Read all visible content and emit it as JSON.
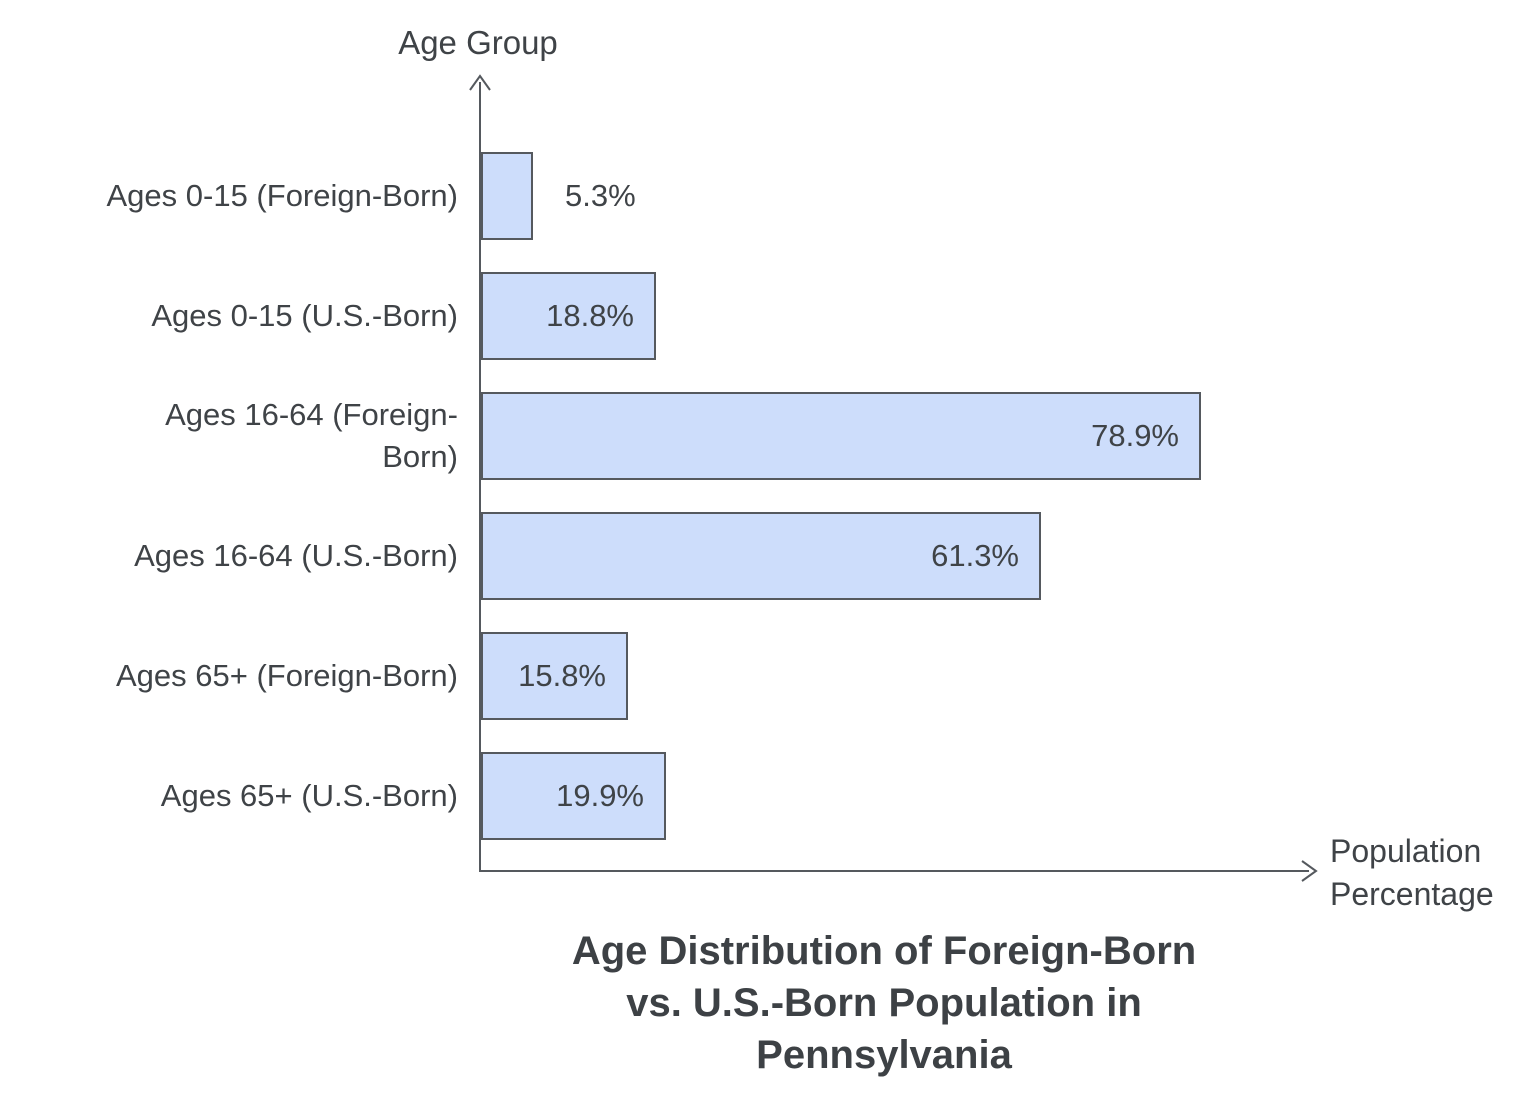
{
  "chart_data": {
    "type": "bar",
    "orientation": "horizontal",
    "title": "Age Distribution of Foreign-Born vs. U.S.-Born Population in Pennsylvania",
    "xlabel": "Population Percentage",
    "ylabel": "Age Group",
    "categories": [
      "Ages 0-15 (Foreign-Born)",
      "Ages 0-15 (U.S.-Born)",
      "Ages 16-64 (Foreign-Born)",
      "Ages 16-64 (U.S.-Born)",
      "Ages 65+ (Foreign-Born)",
      "Ages 65+ (U.S.-Born)"
    ],
    "values": [
      5.3,
      18.8,
      78.9,
      61.3,
      15.8,
      19.9
    ],
    "value_labels": [
      "5.3%",
      "18.8%",
      "78.9%",
      "61.3%",
      "15.8%",
      "19.9%"
    ],
    "xlim": [
      0,
      91.5
    ],
    "grid": false,
    "legend": null,
    "bar_color": "#cdddfb",
    "bar_border_color": "#55595e",
    "text_color": "#3f4347"
  },
  "ui": {
    "y_axis_title": "Age Group",
    "x_axis_title_lines": [
      "Population",
      "Percentage"
    ],
    "title_lines": [
      "Age Distribution of Foreign-Born",
      "vs. U.S.-Born Population in",
      "Pennsylvania"
    ],
    "category_lines": [
      [
        "Ages 0-15 (Foreign-Born)"
      ],
      [
        "Ages 0-15 (U.S.-Born)"
      ],
      [
        "Ages 16-64 (Foreign-",
        "Born)"
      ],
      [
        "Ages 16-64 (U.S.-Born)"
      ],
      [
        "Ages 65+ (Foreign-Born)"
      ],
      [
        "Ages 65+ (U.S.-Born)"
      ]
    ]
  }
}
